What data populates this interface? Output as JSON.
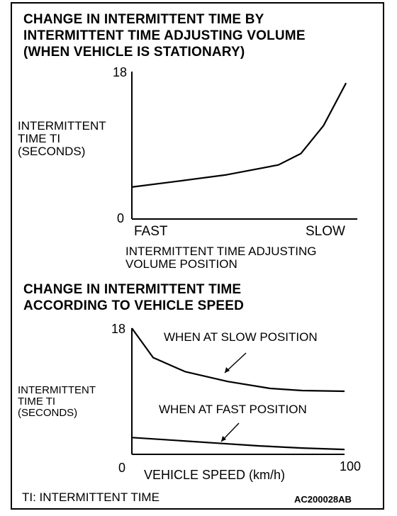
{
  "chart_data": [
    {
      "type": "line",
      "title_lines": [
        "CHANGE IN INTERMITTENT TIME BY",
        "INTERMITTENT TIME ADJUSTING VOLUME",
        "(WHEN VEHICLE IS STATIONARY)"
      ],
      "ylabel_lines": [
        "INTERMITTENT",
        "TIME TI",
        "(SECONDS)"
      ],
      "xlabel_lines": [
        "INTERMITTENT TIME ADJUSTING",
        "VOLUME POSITION"
      ],
      "y_ticks": [
        "18",
        "0"
      ],
      "ylim": [
        0,
        18
      ],
      "xlim": [
        0,
        1
      ],
      "x_tick_labels": [
        "FAST",
        "SLOW"
      ],
      "series": [
        {
          "x": [
            0.0,
            0.2,
            0.42,
            0.65,
            0.75,
            0.85,
            0.95
          ],
          "y": [
            3.9,
            4.6,
            5.4,
            6.6,
            8.0,
            11.4,
            16.6
          ]
        }
      ]
    },
    {
      "type": "line",
      "title_lines": [
        "CHANGE IN INTERMITTENT TIME",
        "ACCORDING TO VEHICLE SPEED"
      ],
      "ylabel_lines": [
        "INTERMITTENT",
        "TIME TI",
        "(SECONDS)"
      ],
      "xlabel": "VEHICLE SPEED  (km/h)",
      "x_ticks": [
        "0",
        "100"
      ],
      "y_ticks": [
        "18"
      ],
      "xlim": [
        0,
        100
      ],
      "ylim": [
        0,
        18
      ],
      "series": [
        {
          "name": "WHEN AT SLOW POSITION",
          "x": [
            0,
            10,
            25,
            45,
            65,
            80,
            100
          ],
          "y": [
            18,
            13.8,
            11.8,
            10.4,
            9.4,
            9.1,
            9.0
          ]
        },
        {
          "name": "WHEN AT FAST POSITION",
          "x": [
            0,
            20,
            40,
            60,
            80,
            100
          ],
          "y": [
            2.4,
            2.0,
            1.6,
            1.2,
            0.9,
            0.7
          ]
        }
      ]
    }
  ],
  "footer": {
    "note": "TI: INTERMITTENT TIME",
    "code": "AC200028AB"
  }
}
